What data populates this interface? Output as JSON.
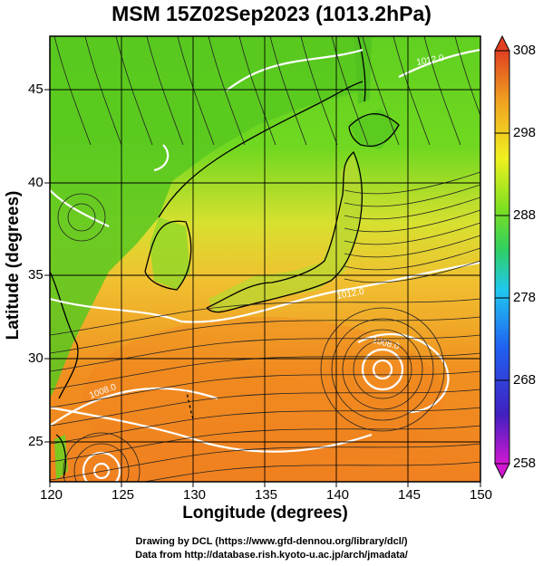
{
  "title": "MSM 15Z02Sep2023 (1013.2hPa)",
  "xlabel": "Longitude (degrees)",
  "ylabel": "Latitude  (degrees)",
  "lon_ticks": [
    "120",
    "125",
    "130",
    "135",
    "140",
    "145",
    "150"
  ],
  "lat_ticks": [
    "25",
    "30",
    "35",
    "40",
    "45"
  ],
  "colorbar_ticks": [
    "308",
    "298",
    "288",
    "278",
    "268",
    "258"
  ],
  "contour_labels": [
    "1008.0",
    "1012.0",
    "1008.0",
    "1012.0"
  ],
  "credits": {
    "line1": "Drawing by DCL (https://www.gfd-dennou.org/library/dcl/)",
    "line2": "Data from http://database.rish.kyoto-u.ac.jp/arch/jmadata/"
  },
  "chart_data": {
    "type": "heatmap",
    "variable_range": [
      258,
      308
    ],
    "xlim": [
      120,
      150
    ],
    "ylim": [
      22.5,
      48
    ],
    "grid": true,
    "overlays": [
      "streamlines",
      "isobar contours",
      "coastlines"
    ],
    "colormap": [
      "#d018d0",
      "#4020c0",
      "#2060f0",
      "#20c8f0",
      "#30d060",
      "#80e020",
      "#f0f020",
      "#f0a020",
      "#e04020"
    ]
  }
}
